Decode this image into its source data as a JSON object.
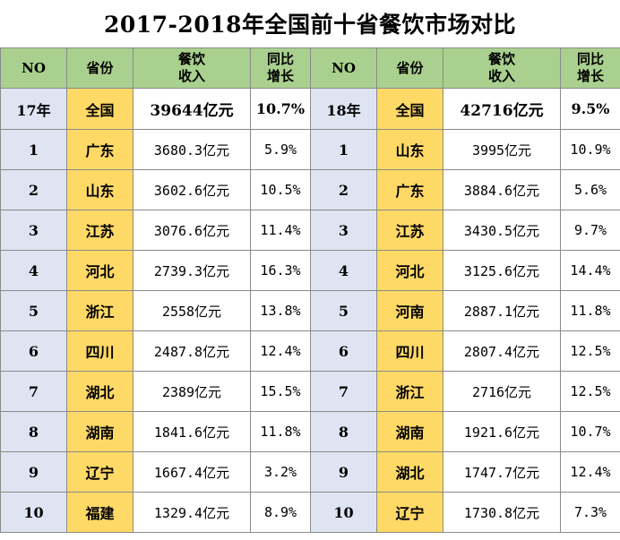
{
  "title": "2017-2018年全国前十省餐饮市场对比",
  "headers": {
    "no": "NO",
    "province": "省份",
    "revenue_line1": "餐饮",
    "revenue_line2": "收入",
    "growth_line1": "同比",
    "growth_line2": "增长"
  },
  "left": {
    "total": {
      "no": "17年",
      "province": "全国",
      "revenue": "39644亿元",
      "growth": "10.7%"
    },
    "rows": [
      {
        "no": "1",
        "province": "广东",
        "revenue": "3680.3亿元",
        "growth": "5.9%"
      },
      {
        "no": "2",
        "province": "山东",
        "revenue": "3602.6亿元",
        "growth": "10.5%"
      },
      {
        "no": "3",
        "province": "江苏",
        "revenue": "3076.6亿元",
        "growth": "11.4%"
      },
      {
        "no": "4",
        "province": "河北",
        "revenue": "2739.3亿元",
        "growth": "16.3%"
      },
      {
        "no": "5",
        "province": "浙江",
        "revenue": "2558亿元",
        "growth": "13.8%"
      },
      {
        "no": "6",
        "province": "四川",
        "revenue": "2487.8亿元",
        "growth": "12.4%"
      },
      {
        "no": "7",
        "province": "湖北",
        "revenue": "2389亿元",
        "growth": "15.5%"
      },
      {
        "no": "8",
        "province": "湖南",
        "revenue": "1841.6亿元",
        "growth": "11.8%"
      },
      {
        "no": "9",
        "province": "辽宁",
        "revenue": "1667.4亿元",
        "growth": "3.2%"
      },
      {
        "no": "10",
        "province": "福建",
        "revenue": "1329.4亿元",
        "growth": "8.9%"
      }
    ]
  },
  "right": {
    "total": {
      "no": "18年",
      "province": "全国",
      "revenue": "42716亿元",
      "growth": "9.5%"
    },
    "rows": [
      {
        "no": "1",
        "province": "山东",
        "revenue": "3995亿元",
        "growth": "10.9%"
      },
      {
        "no": "2",
        "province": "广东",
        "revenue": "3884.6亿元",
        "growth": "5.6%"
      },
      {
        "no": "3",
        "province": "江苏",
        "revenue": "3430.5亿元",
        "growth": "9.7%"
      },
      {
        "no": "4",
        "province": "河北",
        "revenue": "3125.6亿元",
        "growth": "14.4%"
      },
      {
        "no": "5",
        "province": "河南",
        "revenue": "2887.1亿元",
        "growth": "11.8%"
      },
      {
        "no": "6",
        "province": "四川",
        "revenue": "2807.4亿元",
        "growth": "12.5%"
      },
      {
        "no": "7",
        "province": "浙江",
        "revenue": "2716亿元",
        "growth": "12.5%"
      },
      {
        "no": "8",
        "province": "湖南",
        "revenue": "1921.6亿元",
        "growth": "10.7%"
      },
      {
        "no": "9",
        "province": "湖北",
        "revenue": "1747.7亿元",
        "growth": "12.4%"
      },
      {
        "no": "10",
        "province": "辽宁",
        "revenue": "1730.8亿元",
        "growth": "7.3%"
      }
    ]
  },
  "colors": {
    "header_bg": "#a9d08e",
    "no_bg": "#dfe4f2",
    "province_bg": "#ffd966",
    "border": "#8a8a8a"
  }
}
